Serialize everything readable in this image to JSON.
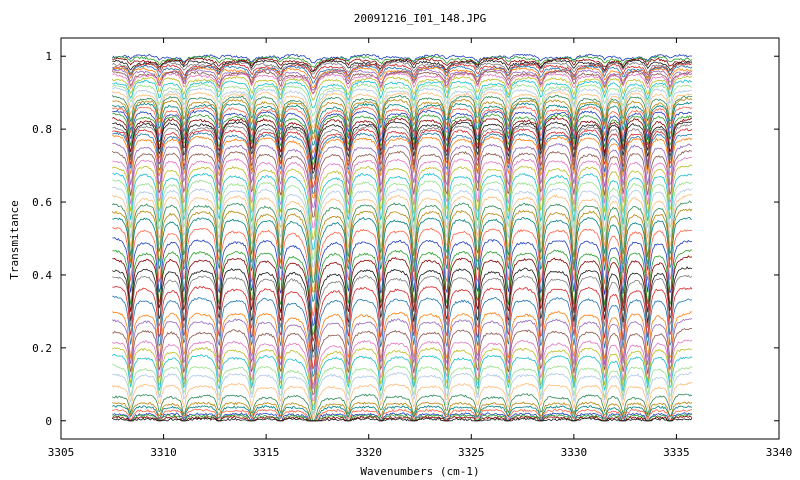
{
  "chart_data": {
    "type": "line",
    "title": "20091216_I01_148.JPG",
    "xlabel": "Wavenumbers (cm-1)",
    "ylabel": "Transmitance",
    "xlim": [
      3305,
      3340
    ],
    "ylim": [
      -0.05,
      1.05
    ],
    "x_ticks": [
      "3305",
      "3310",
      "3315",
      "3320",
      "3325",
      "3330",
      "3335",
      "3340"
    ],
    "y_ticks": [
      "0",
      "0.2",
      "0.4",
      "0.6",
      "0.8",
      "1"
    ],
    "x_range_data": [
      3307.5,
      3335.8
    ],
    "grid": false,
    "legend": "none",
    "absorption_lines": [
      3308.4,
      3309.8,
      3311.0,
      3312.7,
      3314.3,
      3315.7,
      3317.3,
      3319.0,
      3320.6,
      3322.2,
      3323.8,
      3325.3,
      3326.8,
      3328.4,
      3330.0,
      3331.5,
      3332.4,
      3333.6,
      3334.7
    ],
    "strong_line": 3317.3,
    "series_baselines": [
      1.0,
      0.995,
      0.99,
      0.985,
      0.98,
      0.975,
      0.97,
      0.965,
      0.96,
      0.955,
      0.95,
      0.94,
      0.93,
      0.92,
      0.91,
      0.9,
      0.89,
      0.88,
      0.87,
      0.86,
      0.85,
      0.84,
      0.83,
      0.82,
      0.81,
      0.8,
      0.79,
      0.78,
      0.76,
      0.74,
      0.72,
      0.7,
      0.68,
      0.66,
      0.64,
      0.62,
      0.6,
      0.58,
      0.56,
      0.53,
      0.5,
      0.47,
      0.45,
      0.42,
      0.4,
      0.37,
      0.34,
      0.3,
      0.28,
      0.25,
      0.22,
      0.2,
      0.18,
      0.15,
      0.13,
      0.1,
      0.07,
      0.05,
      0.04,
      0.03,
      0.02,
      0.015,
      0.01,
      0.005
    ],
    "colors": [
      "#1f3fbf",
      "#2ca02c",
      "#8b0000",
      "#1a1a1a",
      "#7f7f7f",
      "#d62728",
      "#1f77b4",
      "#ff7f0e",
      "#9467bd",
      "#8c564b",
      "#e377c2",
      "#bcbd22",
      "#17becf",
      "#98df8a",
      "#aec7e8",
      "#ffbb78",
      "#2e8b57",
      "#b8860b",
      "#008080",
      "#ff6347"
    ]
  }
}
